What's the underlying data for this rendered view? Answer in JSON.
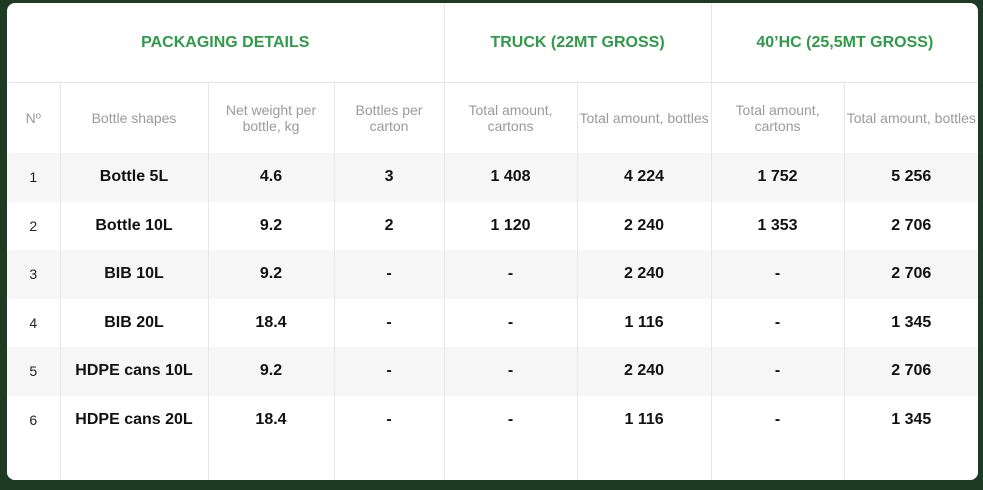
{
  "groups": {
    "packaging": "PACKAGING DETAILS",
    "truck": "TRUCK (22MT GROSS)",
    "container": "40’HC (25,5MT GROSS)"
  },
  "columns": [
    "Nº",
    "Bottle shapes",
    "Net weight per bottle, kg",
    "Bottles per carton",
    "Total amount, cartons",
    "Total amount, bottles",
    "Total amount, cartons",
    "Total amount, bottles"
  ],
  "rows": [
    {
      "no": "1",
      "shape": "Bottle 5L",
      "weight": "4.6",
      "per_carton": "3",
      "truck_cartons": "1 408",
      "truck_bottles": "4 224",
      "hc_cartons": "1 752",
      "hc_bottles": "5 256"
    },
    {
      "no": "2",
      "shape": "Bottle 10L",
      "weight": "9.2",
      "per_carton": "2",
      "truck_cartons": "1 120",
      "truck_bottles": "2 240",
      "hc_cartons": "1 353",
      "hc_bottles": "2 706"
    },
    {
      "no": "3",
      "shape": "BIB 10L",
      "weight": "9.2",
      "per_carton": "-",
      "truck_cartons": "-",
      "truck_bottles": "2 240",
      "hc_cartons": "-",
      "hc_bottles": "2 706"
    },
    {
      "no": "4",
      "shape": "BIB 20L",
      "weight": "18.4",
      "per_carton": "-",
      "truck_cartons": "-",
      "truck_bottles": "1 116",
      "hc_cartons": "-",
      "hc_bottles": "1 345"
    },
    {
      "no": "5",
      "shape": "HDPE cans 10L",
      "weight": "9.2",
      "per_carton": "-",
      "truck_cartons": "-",
      "truck_bottles": "2 240",
      "hc_cartons": "-",
      "hc_bottles": "2 706"
    },
    {
      "no": "6",
      "shape": "HDPE cans 20L",
      "weight": "18.4",
      "per_carton": "-",
      "truck_cartons": "-",
      "truck_bottles": "1 116",
      "hc_cartons": "-",
      "hc_bottles": "1 345"
    }
  ]
}
